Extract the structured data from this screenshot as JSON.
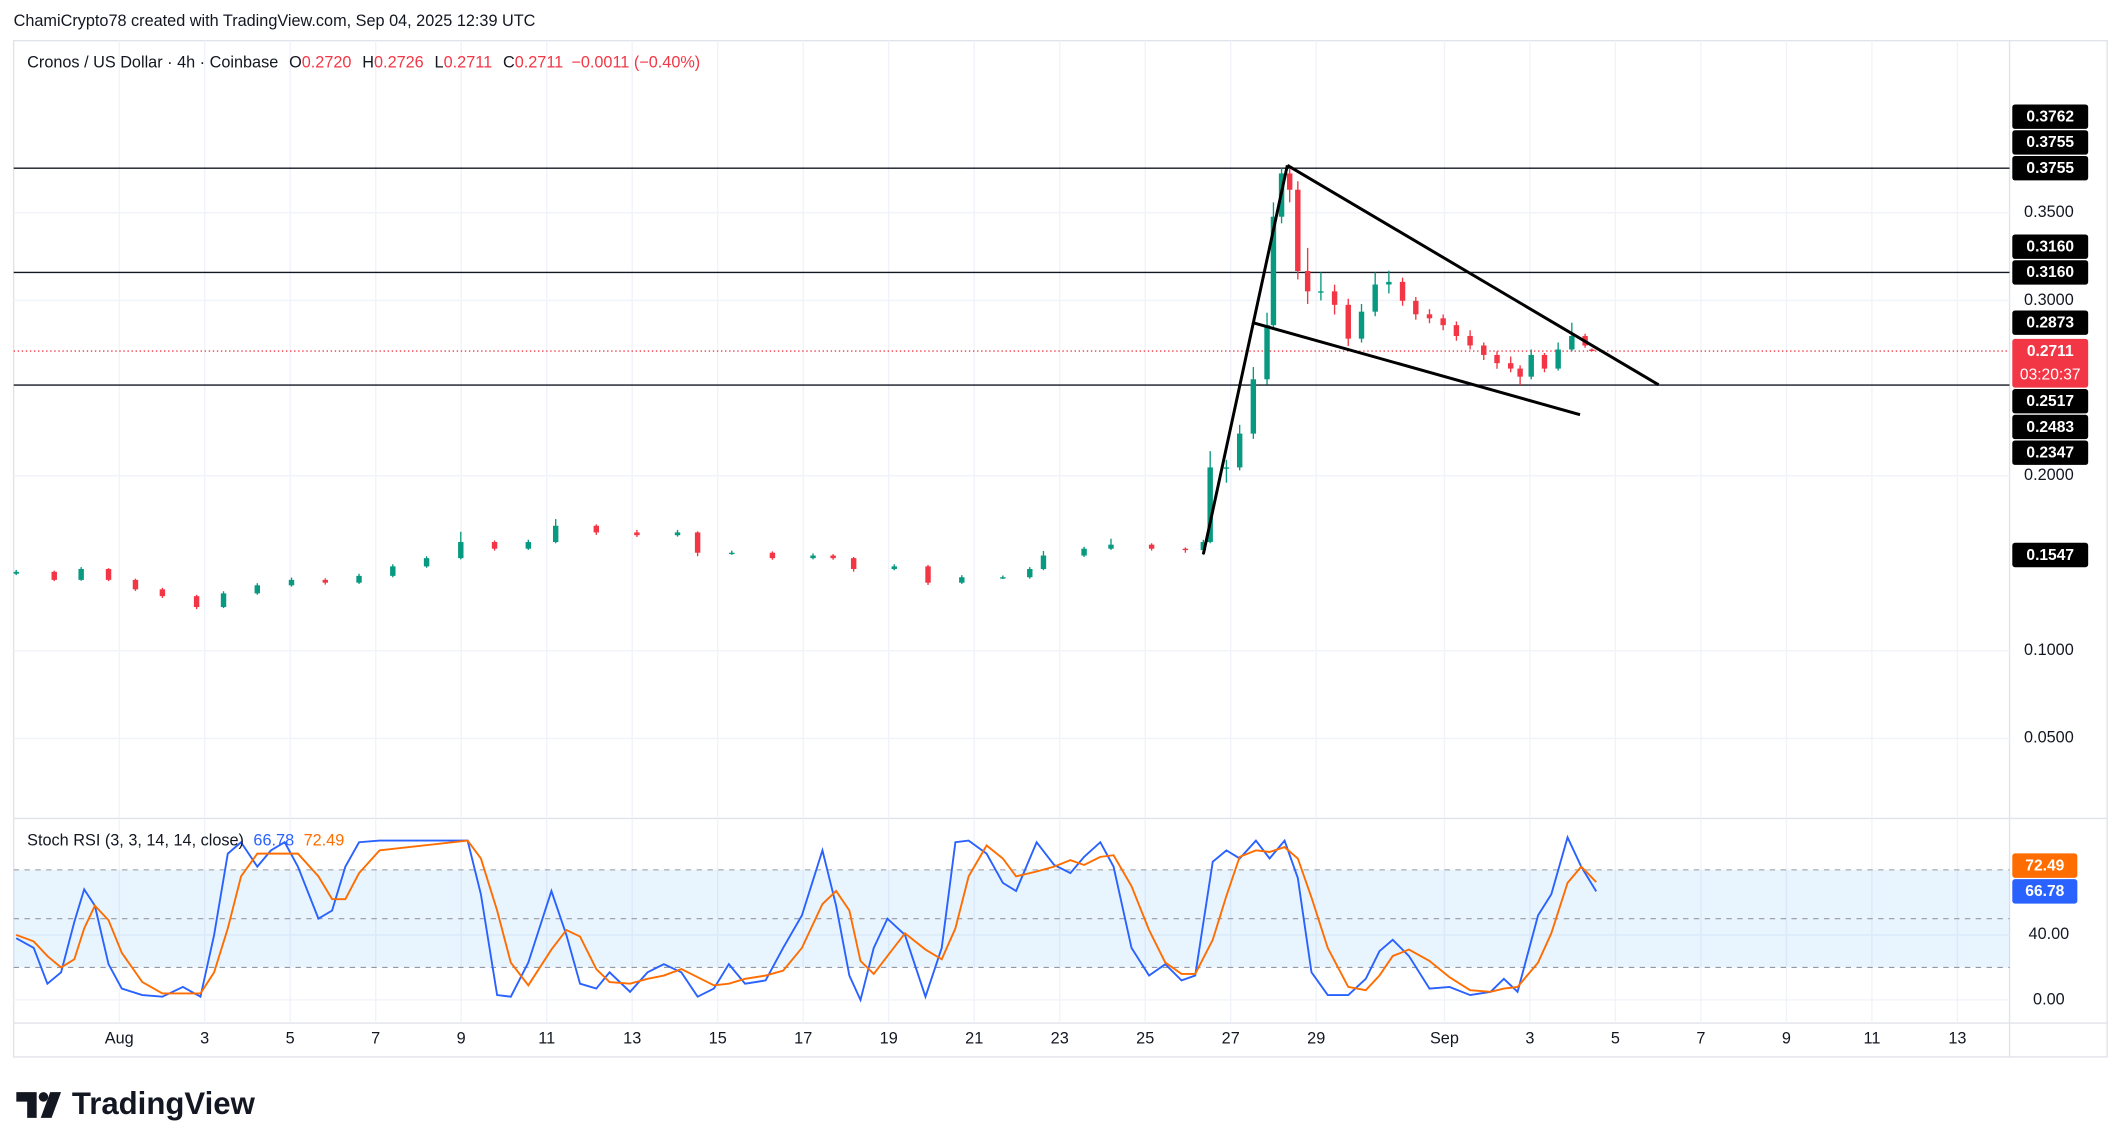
{
  "header": {
    "attribution": "ChamiCrypto78 created with TradingView.com, Sep 04, 2025 12:39 UTC"
  },
  "footer": {
    "logo": "TradingView"
  },
  "chart_data": [
    {
      "type": "candlestick",
      "title": "Cronos / US Dollar · 4h · Coinbase",
      "ohlc_legend": [
        {
          "key": "O",
          "value": "0.2720"
        },
        {
          "key": "H",
          "value": "0.2726"
        },
        {
          "key": "L",
          "value": "0.2711"
        },
        {
          "key": "C",
          "value": "0.2711"
        }
      ],
      "change": "−0.0011 (−0.40%)",
      "x": [
        -2.41,
        -1.52,
        -0.89,
        -0.25,
        0.38,
        1.01,
        1.81,
        2.44,
        3.23,
        4.03,
        4.82,
        5.61,
        6.4,
        7.19,
        7.99,
        8.78,
        9.57,
        10.21,
        11.16,
        12.11,
        13.06,
        13.53,
        14.33,
        15.28,
        16.23,
        16.7,
        17.18,
        18.13,
        18.92,
        19.71,
        20.67,
        21.3,
        21.62,
        22.57,
        23.2,
        24.15,
        24.94,
        25.36,
        25.52,
        25.9,
        26.21,
        26.53,
        26.85,
        27.0,
        27.19,
        27.38,
        27.57,
        27.8,
        28.11,
        28.43,
        28.75,
        29.06,
        29.38,
        29.7,
        30.02,
        30.33,
        30.65,
        30.97,
        31.28,
        31.6,
        31.92,
        32.23,
        32.55,
        32.77,
        33.03,
        33.34,
        33.66,
        33.98,
        34.29,
        34.45
      ],
      "open": [
        0.144,
        0.1451,
        0.1405,
        0.1467,
        0.1405,
        0.1351,
        0.1312,
        0.125,
        0.1328,
        0.1374,
        0.1405,
        0.1389,
        0.1428,
        0.1482,
        0.1529,
        0.1621,
        0.1583,
        0.1621,
        0.1714,
        0.1676,
        0.166,
        0.1676,
        0.156,
        0.156,
        0.1529,
        0.1544,
        0.1529,
        0.1467,
        0.1482,
        0.1389,
        0.142,
        0.142,
        0.1467,
        0.1544,
        0.1583,
        0.1606,
        0.1583,
        0.1575,
        0.1621,
        0.2047,
        0.2047,
        0.224,
        0.255,
        0.2859,
        0.3478,
        0.3725,
        0.3632,
        0.3168,
        0.3052,
        0.3052,
        0.2975,
        0.2782,
        0.2936,
        0.3091,
        0.3106,
        0.2998,
        0.2921,
        0.2898,
        0.2859,
        0.2797,
        0.2743,
        0.2689,
        0.2642,
        0.2611,
        0.2565,
        0.2689,
        0.2611,
        0.272,
        0.2797,
        0.272
      ],
      "high": [
        0.1462,
        0.1458,
        0.1478,
        0.1472,
        0.1412,
        0.136,
        0.132,
        0.134,
        0.1386,
        0.1418,
        0.1414,
        0.144,
        0.1494,
        0.154,
        0.168,
        0.163,
        0.1634,
        0.1752,
        0.1722,
        0.169,
        0.169,
        0.1682,
        0.1572,
        0.1568,
        0.1556,
        0.1552,
        0.1536,
        0.1494,
        0.149,
        0.1432,
        0.143,
        0.1478,
        0.157,
        0.1594,
        0.164,
        0.1614,
        0.159,
        0.1634,
        0.214,
        0.209,
        0.229,
        0.262,
        0.293,
        0.356,
        0.3755,
        0.3762,
        0.368,
        0.33,
        0.316,
        0.309,
        0.301,
        0.298,
        0.316,
        0.317,
        0.313,
        0.302,
        0.295,
        0.292,
        0.288,
        0.283,
        0.276,
        0.271,
        0.268,
        0.263,
        0.272,
        0.27,
        0.276,
        0.2873,
        0.281,
        0.2726
      ],
      "low": [
        0.1432,
        0.1398,
        0.14,
        0.1398,
        0.1342,
        0.1302,
        0.1238,
        0.1244,
        0.132,
        0.1366,
        0.1378,
        0.1382,
        0.142,
        0.1474,
        0.1522,
        0.1572,
        0.1576,
        0.1614,
        0.1662,
        0.165,
        0.1652,
        0.154,
        0.1548,
        0.152,
        0.1522,
        0.152,
        0.1452,
        0.146,
        0.1376,
        0.1382,
        0.141,
        0.1412,
        0.146,
        0.1536,
        0.1576,
        0.1572,
        0.156,
        0.1547,
        0.1614,
        0.196,
        0.203,
        0.221,
        0.252,
        0.284,
        0.344,
        0.356,
        0.312,
        0.298,
        0.3,
        0.292,
        0.274,
        0.276,
        0.291,
        0.304,
        0.297,
        0.289,
        0.287,
        0.283,
        0.277,
        0.272,
        0.266,
        0.261,
        0.259,
        0.2517,
        0.255,
        0.259,
        0.26,
        0.271,
        0.273,
        0.2711
      ],
      "close": [
        0.1451,
        0.1405,
        0.1467,
        0.1405,
        0.1351,
        0.1312,
        0.125,
        0.1328,
        0.1374,
        0.1405,
        0.1389,
        0.1428,
        0.1482,
        0.1529,
        0.1621,
        0.1583,
        0.1621,
        0.1714,
        0.1676,
        0.166,
        0.1676,
        0.156,
        0.156,
        0.1529,
        0.1544,
        0.1529,
        0.1467,
        0.1482,
        0.1389,
        0.142,
        0.142,
        0.1467,
        0.1544,
        0.1583,
        0.1606,
        0.1583,
        0.1575,
        0.1621,
        0.2047,
        0.2047,
        0.224,
        0.255,
        0.2859,
        0.3478,
        0.3725,
        0.3632,
        0.3168,
        0.3052,
        0.3052,
        0.2975,
        0.2782,
        0.2936,
        0.3091,
        0.3106,
        0.2998,
        0.2921,
        0.2898,
        0.2859,
        0.2797,
        0.2743,
        0.2689,
        0.2642,
        0.2611,
        0.2565,
        0.2689,
        0.2611,
        0.272,
        0.2797,
        0.2743,
        0.2711
      ],
      "up_color": "#089981",
      "down_color": "#f23645",
      "xlim": [
        -2.47,
        44.22
      ],
      "ylim": [
        0.0051,
        0.4483
      ],
      "yticks": [
        {
          "value": 0.05,
          "label": "0.0500"
        },
        {
          "value": 0.1,
          "label": "0.1000"
        },
        {
          "value": 0.2,
          "label": "0.2000"
        },
        {
          "value": 0.3,
          "label": "0.3000"
        },
        {
          "value": 0.35,
          "label": "0.3500"
        }
      ],
      "grid": true,
      "hlines": [
        0.3755,
        0.316,
        0.2517
      ],
      "price_labels": [
        {
          "value": 0.3762,
          "label": "0.3762"
        },
        {
          "value": 0.3755,
          "label": "0.3755"
        },
        {
          "value": 0.3755,
          "label": "0.3755"
        },
        {
          "value": 0.316,
          "label": "0.3160"
        },
        {
          "value": 0.316,
          "label": "0.3160"
        },
        {
          "value": 0.2873,
          "label": "0.2873"
        },
        {
          "value": 0.2517,
          "label": "0.2517"
        },
        {
          "value": 0.2483,
          "label": "0.2483"
        },
        {
          "value": 0.2347,
          "label": "0.2347"
        },
        {
          "value": 0.1547,
          "label": "0.1547"
        }
      ],
      "last_price": {
        "value": 0.2711,
        "label": "0.2711",
        "countdown": "03:20:37",
        "color": "#f23645"
      }
    },
    {
      "type": "line",
      "title": "Stoch RSI (3, 3, 14, 14, close)",
      "x": [
        -2.41,
        -2.0,
        -1.68,
        -1.36,
        -1.05,
        -0.82,
        -0.57,
        -0.25,
        0.06,
        0.54,
        1.01,
        1.49,
        1.9,
        2.22,
        2.54,
        2.85,
        3.23,
        3.55,
        3.87,
        4.18,
        4.66,
        4.98,
        5.29,
        5.61,
        6.09,
        8.15,
        8.46,
        8.84,
        9.16,
        9.57,
        10.11,
        10.46,
        10.78,
        11.16,
        11.47,
        11.95,
        12.36,
        12.74,
        13.15,
        13.53,
        13.91,
        14.26,
        14.64,
        15.12,
        15.53,
        15.97,
        16.45,
        16.77,
        17.08,
        17.34,
        17.65,
        17.97,
        18.38,
        18.86,
        19.24,
        19.56,
        19.87,
        20.29,
        20.67,
        20.98,
        21.46,
        21.87,
        22.25,
        22.57,
        22.95,
        23.26,
        23.68,
        24.09,
        24.47,
        24.85,
        25.17,
        25.58,
        25.9,
        26.21,
        26.59,
        26.91,
        27.26,
        27.57,
        27.89,
        28.27,
        28.75,
        29.16,
        29.48,
        29.79,
        30.17,
        30.65,
        31.12,
        31.6,
        32.08,
        32.39,
        32.71,
        33.19,
        33.5,
        33.88,
        34.2,
        34.55
      ],
      "series": [
        {
          "color": "#2962ff",
          "values": [
            38,
            32,
            10,
            17,
            48,
            68,
            58,
            22,
            7,
            3,
            2,
            8,
            2,
            40,
            90,
            97,
            82,
            92,
            97,
            82,
            50,
            55,
            82,
            97,
            98,
            98,
            65,
            3,
            2,
            23,
            67,
            40,
            10,
            7,
            17,
            5,
            17,
            22,
            17,
            2,
            7,
            22,
            10,
            12,
            32,
            52,
            92,
            58,
            15,
            0,
            32,
            50,
            40,
            2,
            32,
            97,
            98,
            90,
            72,
            67,
            97,
            83,
            78,
            88,
            97,
            82,
            32,
            15,
            22,
            12,
            15,
            85,
            92,
            87,
            98,
            87,
            98,
            75,
            17,
            3,
            3,
            13,
            30,
            37,
            27,
            7,
            8,
            3,
            5,
            13,
            5,
            52,
            65,
            100,
            82,
            66.78
          ]
        },
        {
          "color": "#ff6d00",
          "values": [
            40,
            36,
            27,
            20,
            25,
            44,
            58,
            49,
            29,
            11,
            4,
            4,
            4,
            17,
            44,
            76,
            90,
            90,
            90,
            90,
            76,
            62,
            62,
            78,
            92,
            98,
            87,
            55,
            23,
            9,
            31,
            43,
            39,
            19,
            11,
            10,
            13,
            15,
            19,
            14,
            9,
            10,
            13,
            15,
            18,
            32,
            59,
            67,
            55,
            24,
            16,
            27,
            41,
            31,
            25,
            44,
            76,
            95,
            87,
            76,
            79,
            82,
            86,
            83,
            88,
            89,
            70,
            43,
            23,
            16,
            16,
            37,
            64,
            88,
            92,
            91,
            94,
            87,
            63,
            32,
            8,
            6,
            15,
            27,
            31,
            24,
            14,
            6,
            5,
            7,
            8,
            23,
            41,
            72,
            82,
            72.49
          ]
        }
      ],
      "xlim": [
        -2.47,
        44.22
      ],
      "ylim": [
        -14.2,
        110.8
      ],
      "yticks": [
        {
          "value": 0,
          "label": "0.00"
        },
        {
          "value": 40,
          "label": "40.00"
        }
      ],
      "xticks": [
        {
          "value": 0,
          "label": "Aug"
        },
        {
          "value": 2,
          "label": "3"
        },
        {
          "value": 4,
          "label": "5"
        },
        {
          "value": 6,
          "label": "7"
        },
        {
          "value": 8,
          "label": "9"
        },
        {
          "value": 10,
          "label": "11"
        },
        {
          "value": 12,
          "label": "13"
        },
        {
          "value": 14,
          "label": "15"
        },
        {
          "value": 16,
          "label": "17"
        },
        {
          "value": 18,
          "label": "19"
        },
        {
          "value": 20,
          "label": "21"
        },
        {
          "value": 22,
          "label": "23"
        },
        {
          "value": 24,
          "label": "25"
        },
        {
          "value": 26,
          "label": "27"
        },
        {
          "value": 28,
          "label": "29"
        },
        {
          "value": 31,
          "label": "Sep"
        },
        {
          "value": 33,
          "label": "3"
        },
        {
          "value": 35,
          "label": "5"
        },
        {
          "value": 37,
          "label": "7"
        },
        {
          "value": 39,
          "label": "9"
        },
        {
          "value": 41,
          "label": "11"
        },
        {
          "value": 43,
          "label": "13"
        }
      ],
      "bands": [
        20,
        50,
        80
      ],
      "band_fill": "rgba(33,150,243,0.1)"
    }
  ]
}
